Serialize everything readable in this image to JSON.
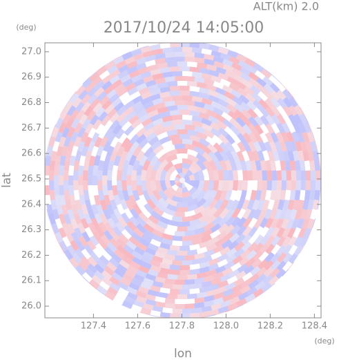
{
  "chart_data": {
    "type": "ppi",
    "annotation": "ALT(km) 2.0",
    "title": "2017/10/24 14:05:00",
    "xlabel": "lon",
    "ylabel": "lat",
    "xunit": "(deg)",
    "yunit": "(deg)",
    "xlim": [
      127.18,
      128.43
    ],
    "ylim": [
      25.954,
      27.035
    ],
    "xticks": [
      127.4,
      127.6,
      127.8,
      128.0,
      128.2,
      128.4
    ],
    "yticks": [
      26.0,
      26.1,
      26.2,
      26.3,
      26.4,
      26.5,
      26.6,
      26.7,
      26.8,
      26.9,
      27.0
    ]
  }
}
